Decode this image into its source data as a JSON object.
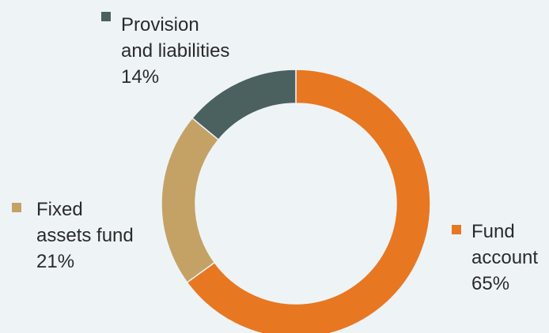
{
  "chart_data": {
    "type": "donut",
    "series": [
      {
        "name": "Fund account",
        "label_lines": [
          "Fund",
          "account"
        ],
        "value": 65,
        "value_label": "65%",
        "color": "#e87722"
      },
      {
        "name": "Fixed assets fund",
        "label_lines": [
          "Fixed",
          "assets fund"
        ],
        "value": 21,
        "value_label": "21%",
        "color": "#c4a265"
      },
      {
        "name": "Provision and liabilities",
        "label_lines": [
          "Provision",
          "and liabilities"
        ],
        "value": 14,
        "value_label": "14%",
        "color": "#4a615f"
      }
    ],
    "start": "12 o'clock",
    "direction": "clockwise",
    "legend": "inline labels with square markers"
  },
  "colors": {
    "background": "#eef4f6",
    "text": "#2a2a2a"
  }
}
